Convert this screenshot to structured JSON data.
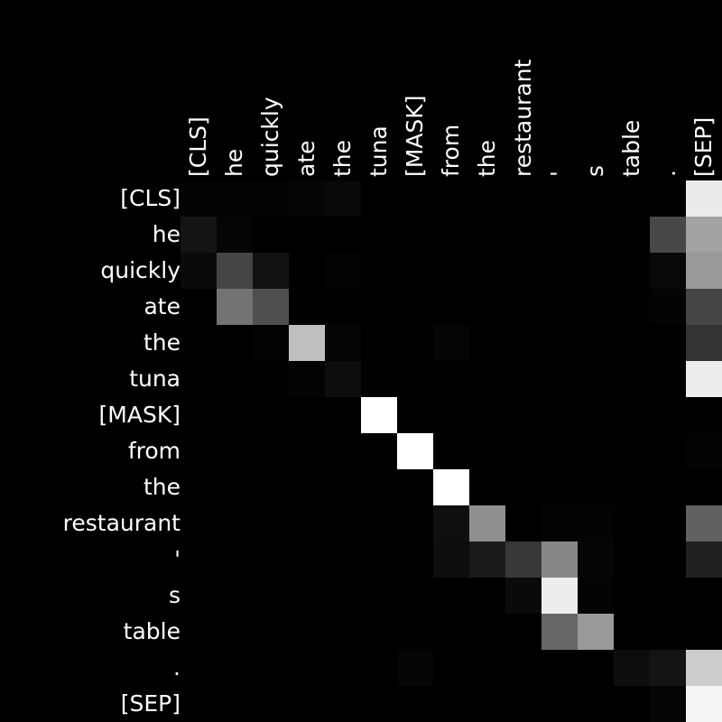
{
  "chart_data": {
    "type": "heatmap",
    "colormap": "grayscale",
    "background": "#000000",
    "text_color": "#ffffff",
    "x_tokens": [
      "[CLS]",
      "he",
      "quickly",
      "ate",
      "the",
      "tuna",
      "[MASK]",
      "from",
      "the",
      "restaurant",
      "'",
      "s",
      "table",
      ".",
      "[SEP]"
    ],
    "y_tokens": [
      "[CLS]",
      "he",
      "quickly",
      "ate",
      "the",
      "tuna",
      "[MASK]",
      "from",
      "the",
      "restaurant",
      "'",
      "s",
      "table",
      ".",
      "[SEP]"
    ],
    "vmin": 0,
    "vmax": 1,
    "values": [
      [
        0.01,
        0.01,
        0.01,
        0.02,
        0.03,
        0.0,
        0.0,
        0.0,
        0.0,
        0.0,
        0.0,
        0.0,
        0.0,
        0.0,
        0.92
      ],
      [
        0.08,
        0.02,
        0.0,
        0.0,
        0.0,
        0.0,
        0.0,
        0.0,
        0.0,
        0.0,
        0.0,
        0.0,
        0.0,
        0.28,
        0.64
      ],
      [
        0.04,
        0.27,
        0.07,
        0.0,
        0.01,
        0.0,
        0.0,
        0.0,
        0.0,
        0.0,
        0.0,
        0.0,
        0.0,
        0.03,
        0.6
      ],
      [
        0.0,
        0.45,
        0.31,
        0.0,
        0.0,
        0.0,
        0.0,
        0.0,
        0.0,
        0.0,
        0.0,
        0.0,
        0.0,
        0.01,
        0.27
      ],
      [
        0.0,
        0.0,
        0.01,
        0.75,
        0.02,
        0.0,
        0.0,
        0.02,
        0.0,
        0.0,
        0.0,
        0.0,
        0.0,
        0.0,
        0.2
      ],
      [
        0.0,
        0.0,
        0.0,
        0.01,
        0.05,
        0.0,
        0.0,
        0.0,
        0.0,
        0.0,
        0.0,
        0.0,
        0.0,
        0.0,
        0.93
      ],
      [
        0.0,
        0.0,
        0.0,
        0.0,
        0.0,
        1.0,
        0.0,
        0.0,
        0.0,
        0.0,
        0.0,
        0.0,
        0.0,
        0.0,
        0.0
      ],
      [
        0.0,
        0.0,
        0.0,
        0.0,
        0.0,
        0.0,
        1.0,
        0.0,
        0.0,
        0.0,
        0.0,
        0.0,
        0.0,
        0.0,
        0.01
      ],
      [
        0.0,
        0.0,
        0.0,
        0.0,
        0.0,
        0.0,
        0.0,
        1.0,
        0.0,
        0.0,
        0.0,
        0.0,
        0.0,
        0.0,
        0.0
      ],
      [
        0.0,
        0.0,
        0.0,
        0.0,
        0.0,
        0.0,
        0.0,
        0.06,
        0.56,
        0.0,
        0.01,
        0.01,
        0.0,
        0.0,
        0.38
      ],
      [
        0.0,
        0.0,
        0.0,
        0.0,
        0.0,
        0.0,
        0.0,
        0.05,
        0.1,
        0.22,
        0.53,
        0.02,
        0.0,
        0.0,
        0.13
      ],
      [
        0.0,
        0.0,
        0.0,
        0.0,
        0.0,
        0.0,
        0.0,
        0.0,
        0.0,
        0.04,
        0.93,
        0.01,
        0.0,
        0.0,
        0.0
      ],
      [
        0.0,
        0.0,
        0.0,
        0.0,
        0.0,
        0.0,
        0.0,
        0.0,
        0.0,
        0.0,
        0.4,
        0.6,
        0.0,
        0.0,
        0.0
      ],
      [
        0.0,
        0.0,
        0.0,
        0.0,
        0.0,
        0.0,
        0.02,
        0.0,
        0.0,
        0.0,
        0.0,
        0.0,
        0.05,
        0.08,
        0.8
      ],
      [
        0.0,
        0.0,
        0.0,
        0.0,
        0.0,
        0.0,
        0.0,
        0.0,
        0.0,
        0.0,
        0.0,
        0.0,
        0.0,
        0.02,
        0.96
      ]
    ]
  }
}
